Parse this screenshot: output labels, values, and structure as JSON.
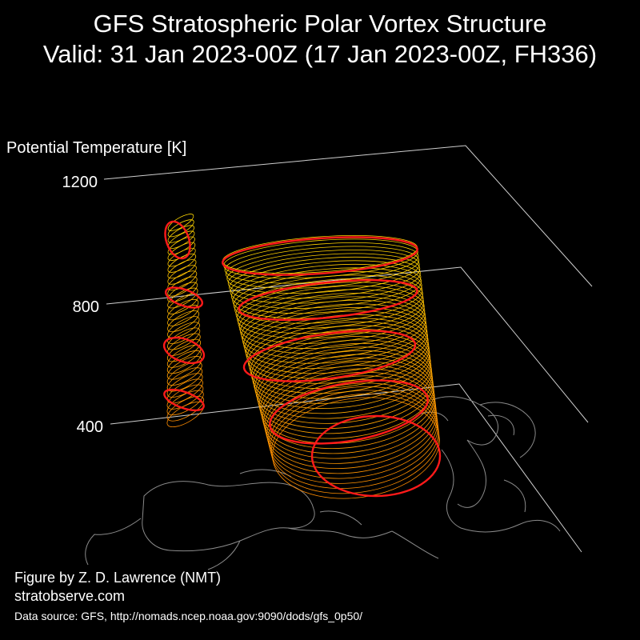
{
  "title": {
    "line1": "GFS Stratospheric Polar Vortex Structure",
    "line2": "Valid: 31 Jan 2023-00Z  (17 Jan 2023-00Z, FH336)"
  },
  "credits": {
    "author": "Figure by Z. D. Lawrence (NMT)",
    "site": "stratobserve.com",
    "source": "Data source: GFS, http://nomads.ncep.noaa.gov:9090/dods/gfs_0p50/"
  },
  "chart_data": {
    "type": "3d-isentropic-surface",
    "zlabel": "Potential Temperature [K]",
    "zticks": [
      400,
      800,
      1200
    ],
    "zlim": [
      300,
      1200
    ],
    "grid": true,
    "colors": {
      "background": "#000000",
      "axis": "#cfcfcf",
      "coast": "#8a8a8a",
      "contour_low": "#ff8c00",
      "contour_high": "#ffd700",
      "highlight": "#ff1a1a"
    }
  }
}
